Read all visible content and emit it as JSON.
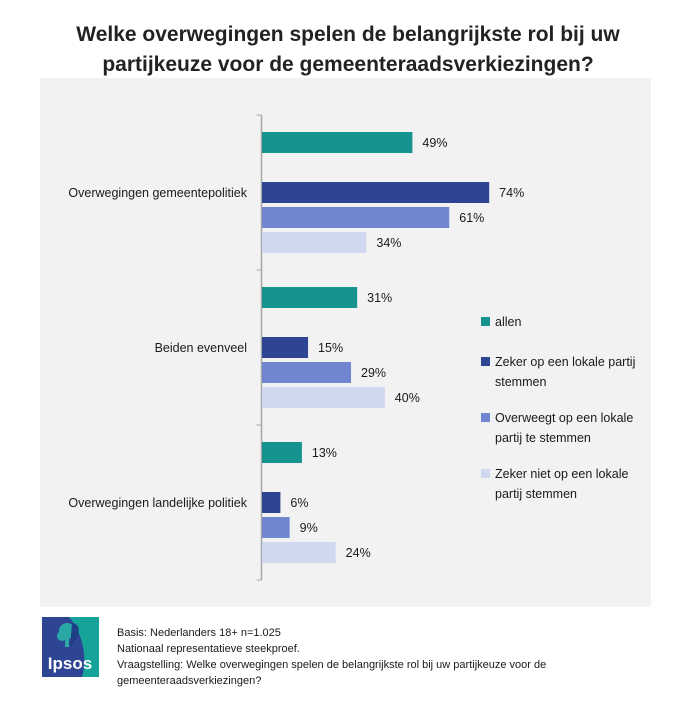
{
  "title_lines": [
    "Welke overwegingen spelen de belangrijkste rol bij uw",
    "partijkeuze voor de gemeenteraadsverkiezingen?"
  ],
  "chart_data": {
    "type": "bar",
    "orientation": "horizontal",
    "title": "Welke overwegingen spelen de belangrijkste rol bij uw partijkeuze voor de gemeenteraadsverkiezingen?",
    "categories": [
      "Overwegingen gemeentepolitiek",
      "Beiden evenveel",
      "Overwegingen landelijke politiek"
    ],
    "series": [
      {
        "name": "allen",
        "color": "#16938F",
        "values": [
          49,
          31,
          13
        ]
      },
      {
        "name": "Zeker op een lokale partij stemmen",
        "color": "#2E4593",
        "values": [
          74,
          15,
          6
        ]
      },
      {
        "name": "Overweegt op een lokale partij te stemmen",
        "color": "#7186D1",
        "values": [
          61,
          29,
          9
        ]
      },
      {
        "name": "Zeker niet op een lokale partij stemmen",
        "color": "#D0D8EF",
        "values": [
          34,
          40,
          24
        ]
      }
    ],
    "value_suffix": "%",
    "xlim": [
      0,
      100
    ],
    "xlabel": "",
    "ylabel": "",
    "grid": false,
    "legend_position": "right"
  },
  "legend": [
    {
      "label": "allen",
      "color": "#16938F"
    },
    {
      "label": "Zeker op een lokale partij stemmen",
      "color": "#2E4593"
    },
    {
      "label": "Overweegt op een lokale partij te stemmen",
      "color": "#7186D1"
    },
    {
      "label": "Zeker niet op een lokale partij stemmen",
      "color": "#D0D8EF"
    }
  ],
  "footer": {
    "lines": [
      "Basis: Nederlanders 18+ n=1.025",
      "Nationaal representatieve steekproef.",
      "Vraagstelling: Welke overwegingen spelen de belangrijkste rol bij uw partijkeuze voor de",
      "gemeenteraadsverkiezingen?"
    ]
  },
  "logo": {
    "text": "Ipsos",
    "colors": {
      "left": "#2E4593",
      "right": "#16A39A"
    }
  }
}
